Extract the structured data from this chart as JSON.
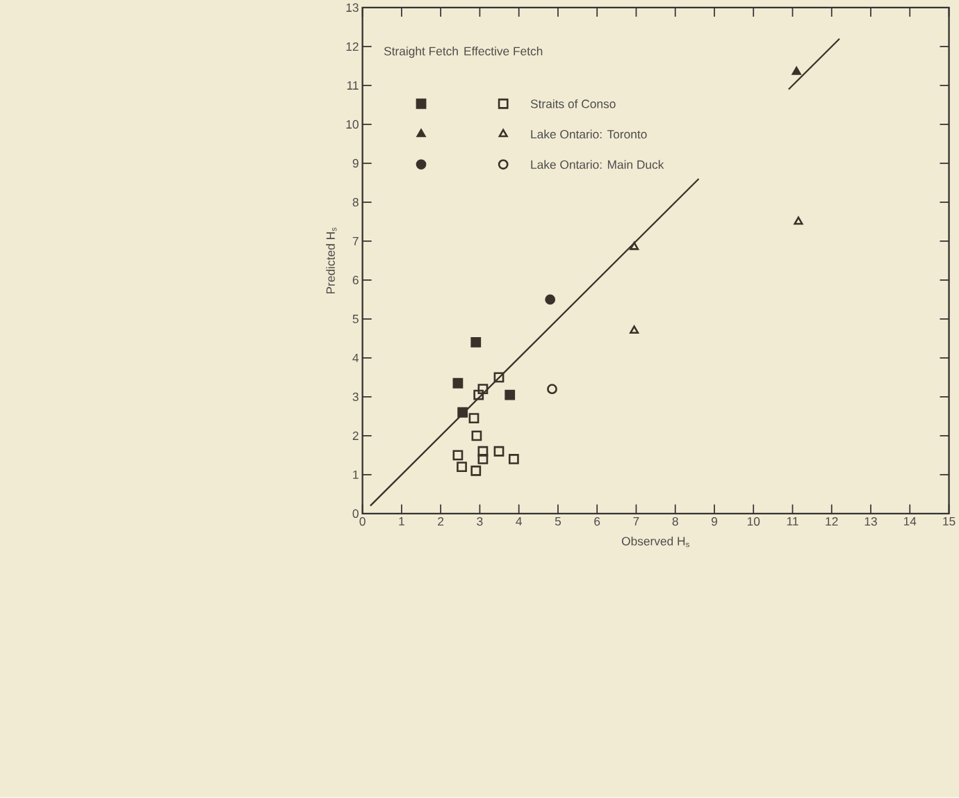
{
  "chart_data": {
    "type": "scatter",
    "xlabel": "Observed H$_{s}$",
    "ylabel": "Predicted H$_{s}$",
    "xlim": [
      0,
      15
    ],
    "ylim": [
      0,
      13
    ],
    "xticks": [
      0,
      1,
      2,
      3,
      4,
      5,
      6,
      7,
      8,
      9,
      10,
      11,
      12,
      13,
      14,
      15
    ],
    "yticks": [
      0,
      1,
      2,
      3,
      4,
      5,
      6,
      7,
      8,
      9,
      10,
      11,
      12,
      13
    ],
    "grid": false,
    "legend": "top left",
    "annotations": [
      "Straight Fetch",
      "Effective Fetch"
    ],
    "series": [
      {
        "marker": "square",
        "color": "#3a322a",
        "x": [
          2.9,
          2.44,
          3.77,
          2.56
        ],
        "values": [
          4.4,
          3.35,
          3.05,
          2.6
        ]
      },
      {
        "name": "Straits of Conso",
        "marker": "square",
        "color": "#3a322a",
        "x": [
          3.49,
          3.08,
          2.97,
          2.85,
          2.92,
          2.44,
          3.08,
          3.08,
          3.49,
          3.87,
          2.54,
          2.9
        ],
        "values": [
          3.5,
          3.2,
          3.05,
          2.45,
          2.0,
          1.5,
          1.6,
          1.4,
          1.6,
          1.4,
          1.2,
          1.1
        ]
      },
      {
        "marker": "triangle",
        "color": "#3a322a",
        "x": [
          11.1
        ],
        "values": [
          11.35
        ]
      },
      {
        "name": "Lake Ontario: Toronto",
        "marker": "triangle",
        "color": "#3a322a",
        "x": [
          6.95,
          6.95,
          11.15
        ],
        "values": [
          6.85,
          4.7,
          7.5
        ]
      },
      {
        "marker": "circle",
        "color": "#3a322a",
        "x": [
          4.8
        ],
        "values": [
          5.5
        ]
      },
      {
        "name": "Lake Ontario: Main Duck",
        "marker": "circle",
        "color": "#3a322a",
        "x": [
          4.85
        ],
        "values": [
          3.2
        ]
      },
      {
        "type": "line",
        "marker": "none",
        "line_style": "solid",
        "color": "#3a322a",
        "x": [
          0.2,
          8.6,
          9.7,
          10.9,
          12.2
        ],
        "values": [
          0.2,
          8.6,
          null,
          10.9,
          12.2
        ]
      }
    ]
  }
}
